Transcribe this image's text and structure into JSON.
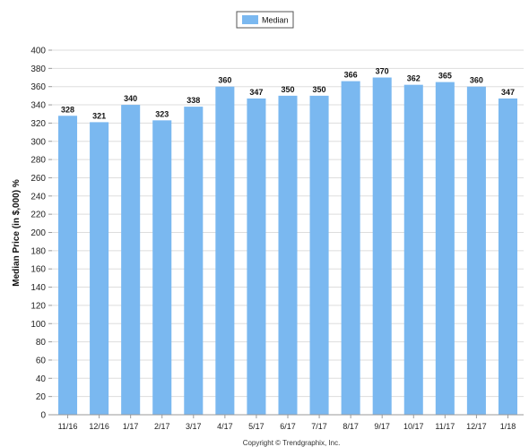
{
  "chart_data": {
    "type": "bar",
    "categories": [
      "11/16",
      "12/16",
      "1/17",
      "2/17",
      "3/17",
      "4/17",
      "5/17",
      "6/17",
      "7/17",
      "8/17",
      "9/17",
      "10/17",
      "11/17",
      "12/17",
      "1/18"
    ],
    "series": [
      {
        "name": "Median",
        "values": [
          328,
          321,
          340,
          323,
          338,
          360,
          347,
          350,
          350,
          366,
          370,
          362,
          365,
          360,
          347
        ],
        "color": "#7ab8f0"
      }
    ],
    "xlabel": "",
    "ylabel": "Median Price (in $,000) %",
    "ylim": [
      0,
      400
    ],
    "yticks": [
      0,
      20,
      40,
      60,
      80,
      100,
      120,
      140,
      160,
      180,
      200,
      220,
      240,
      260,
      280,
      300,
      320,
      340,
      360,
      380,
      400
    ],
    "grid": true,
    "legend_position": "top-center",
    "data_labels": true
  },
  "footer": {
    "copyright": "Copyright © Trendgraphix, Inc."
  },
  "colors": {
    "bar": "#7ab8f0",
    "grid": "#dddddd",
    "axis": "#999999"
  }
}
